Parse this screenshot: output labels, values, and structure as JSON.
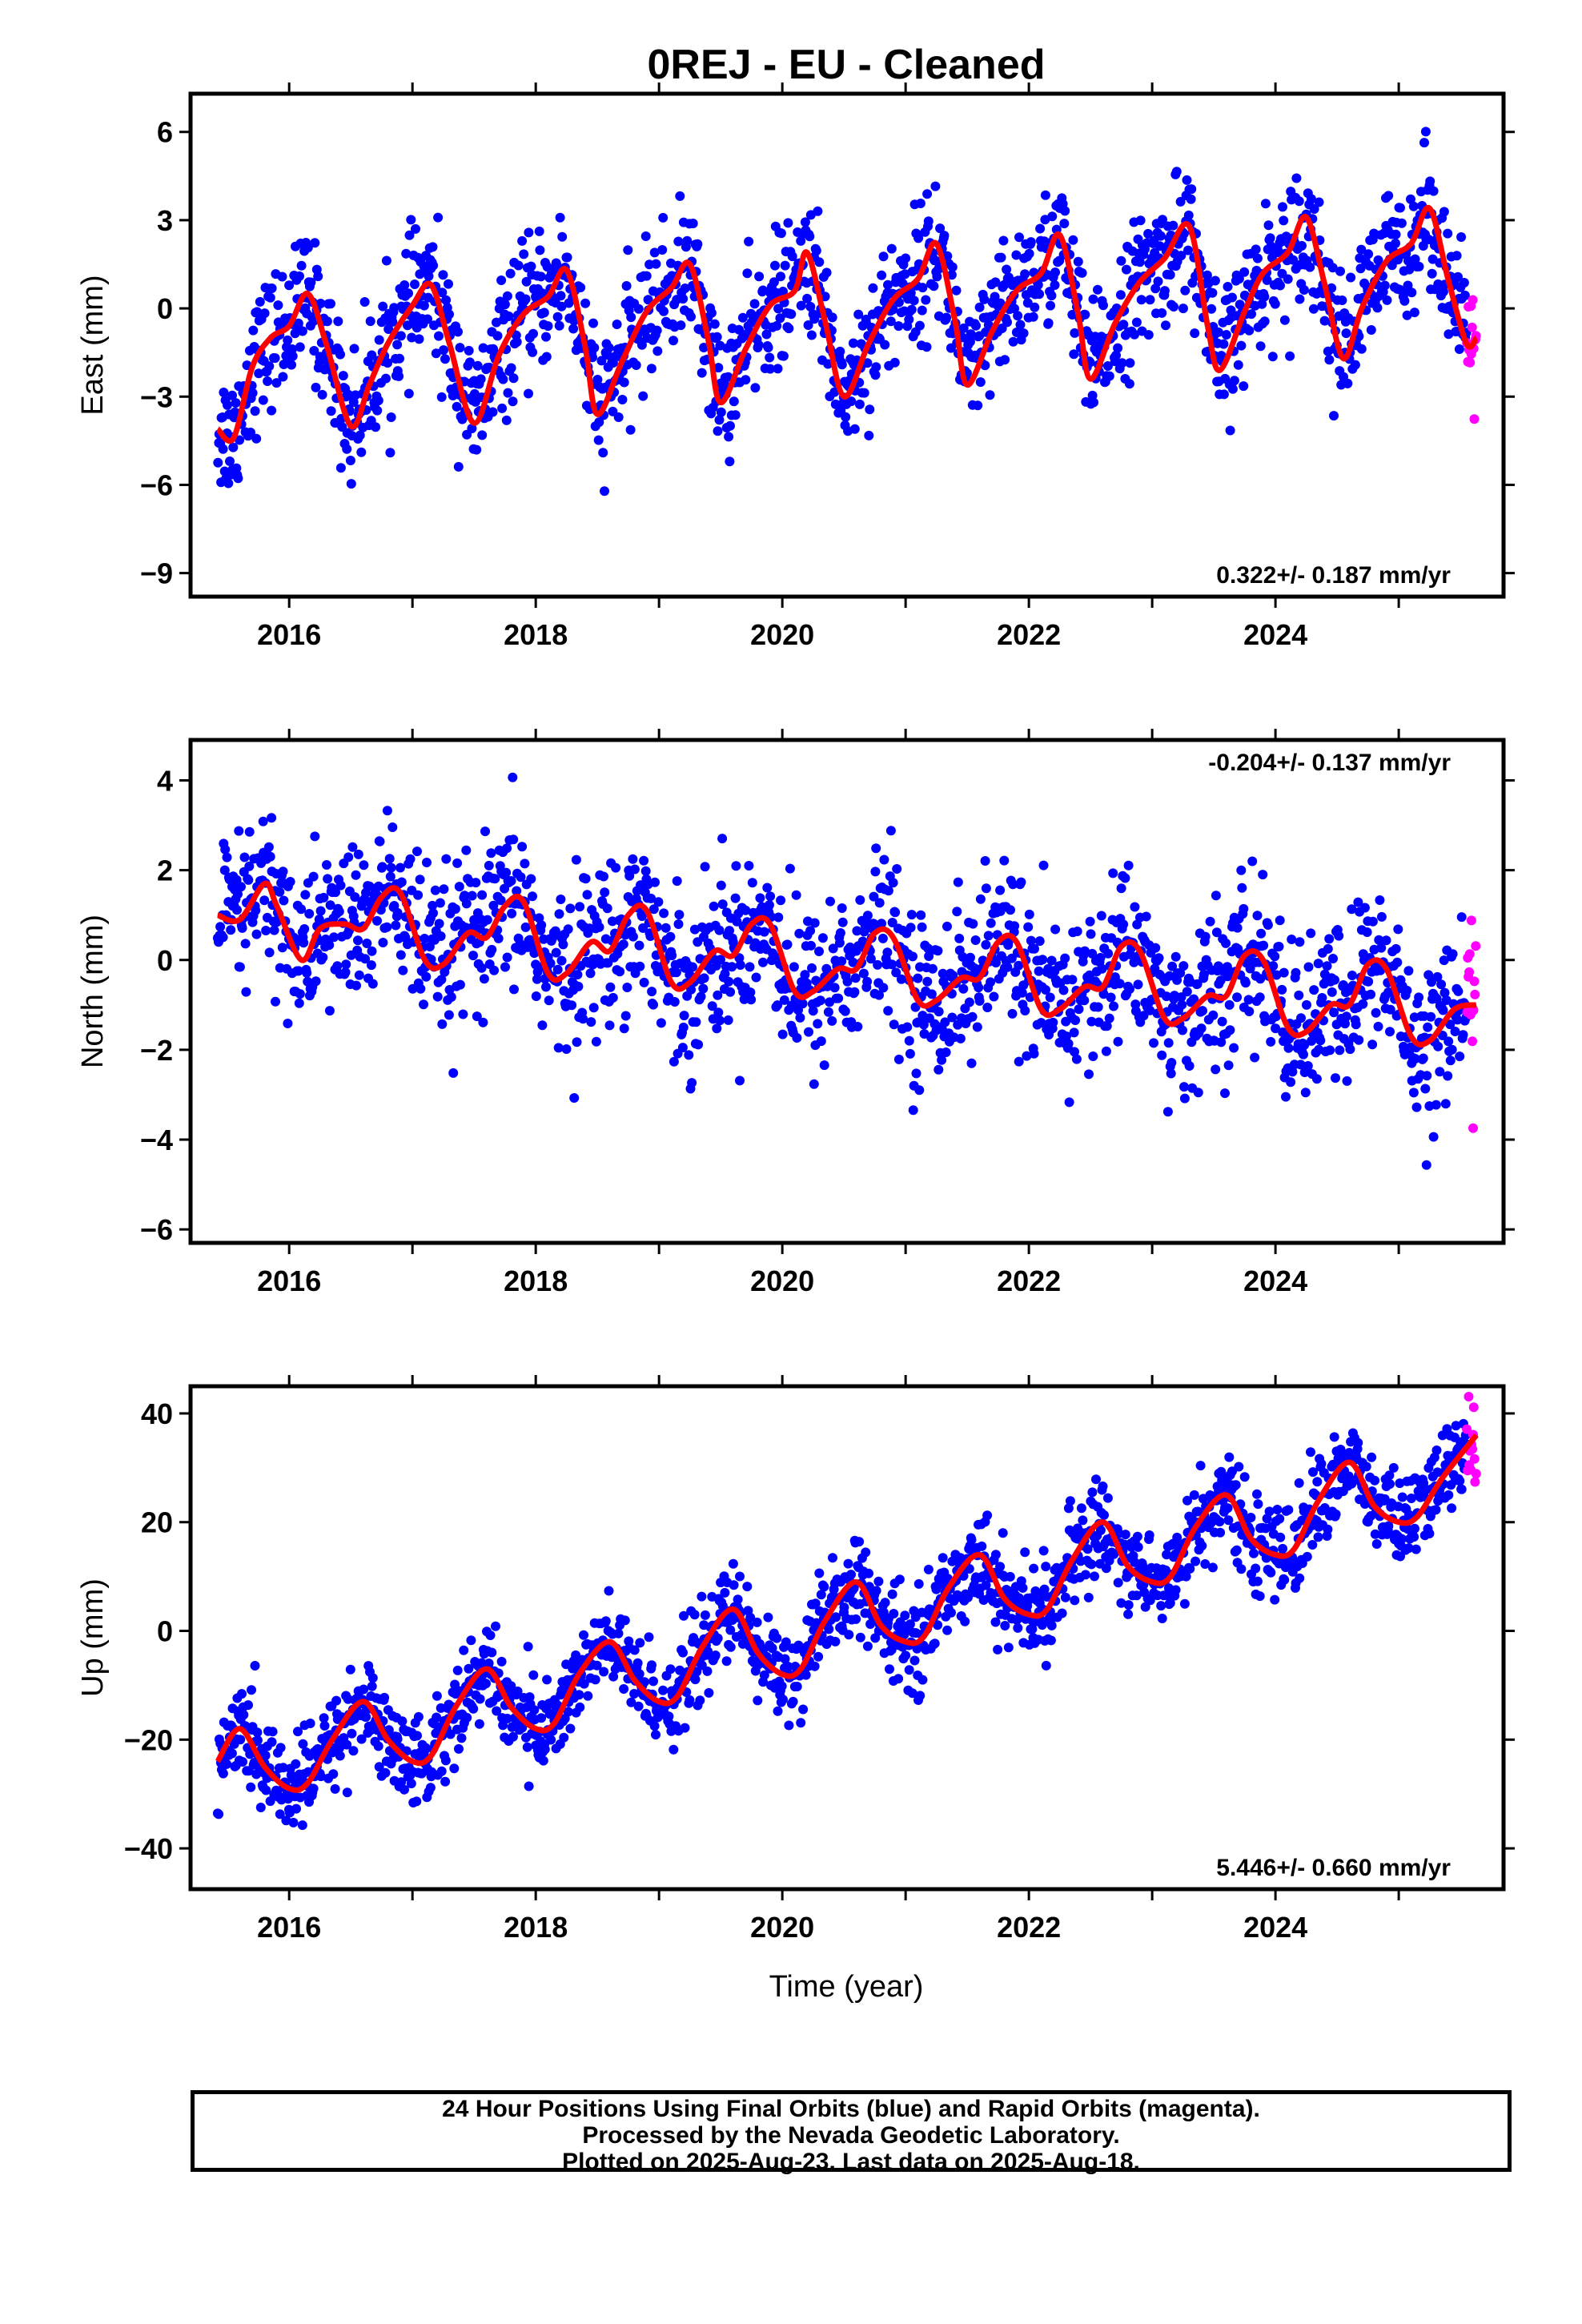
{
  "title": "0REJ  - EU - Cleaned",
  "xlabel": "Time (year)",
  "footer": {
    "line1": "24 Hour Positions Using Final Orbits (blue) and Rapid Orbits (magenta).",
    "line2": "Processed by the Nevada Geodetic Laboratory.",
    "line3": "Plotted on 2025-Aug-23. Last data on 2025-Aug-18."
  },
  "colors": {
    "final": "#0000ff",
    "rapid": "#ff00ff",
    "fit": "#ff0000"
  },
  "chart_data": [
    {
      "type": "scatter",
      "name": "east",
      "ylabel": "East (mm)",
      "rate_label": "0.322+/- 0.187 mm/yr",
      "xlim": [
        2015.2,
        2025.85
      ],
      "ylim": [
        -9.8,
        7.3
      ],
      "yticks": [
        -9,
        -6,
        -3,
        0,
        3,
        6
      ],
      "xticks": [
        2016,
        2018,
        2020,
        2022,
        2024
      ],
      "x_range": [
        2015.42,
        2025.63
      ],
      "rapid_start": 2025.55,
      "fit": {
        "x": [
          2015.42,
          2015.55,
          2015.7,
          2015.85,
          2016.0,
          2016.15,
          2016.3,
          2016.5,
          2016.65,
          2016.8,
          2017.0,
          2017.15,
          2017.3,
          2017.5,
          2017.7,
          2017.9,
          2018.1,
          2018.25,
          2018.4,
          2018.5,
          2018.7,
          2018.9,
          2019.1,
          2019.25,
          2019.4,
          2019.5,
          2019.7,
          2019.9,
          2020.1,
          2020.2,
          2020.35,
          2020.5,
          2020.7,
          2020.9,
          2021.1,
          2021.25,
          2021.4,
          2021.5,
          2021.7,
          2021.9,
          2022.1,
          2022.25,
          2022.4,
          2022.5,
          2022.7,
          2022.9,
          2023.1,
          2023.3,
          2023.45,
          2023.55,
          2023.75,
          2023.9,
          2024.1,
          2024.25,
          2024.4,
          2024.55,
          2024.7,
          2024.9,
          2025.1,
          2025.25,
          2025.4,
          2025.55,
          2025.63
        ],
        "y": [
          -4.1,
          -4.4,
          -2.0,
          -1.0,
          -0.6,
          0.5,
          -1.2,
          -4.0,
          -2.6,
          -1.2,
          0.1,
          0.8,
          -1.2,
          -3.9,
          -1.6,
          -0.2,
          0.4,
          1.3,
          -1.3,
          -3.6,
          -1.8,
          -0.1,
          0.7,
          1.5,
          -1.1,
          -3.2,
          -1.4,
          0.1,
          0.6,
          1.9,
          -0.5,
          -3.0,
          -1.2,
          0.3,
          1.0,
          2.2,
          -0.4,
          -2.6,
          -0.8,
          0.6,
          1.2,
          2.5,
          -0.2,
          -2.4,
          -0.5,
          0.9,
          1.7,
          2.8,
          -0.6,
          -2.1,
          -0.1,
          1.2,
          1.9,
          3.1,
          0.8,
          -1.7,
          0.0,
          1.6,
          2.2,
          3.4,
          1.0,
          -1.2,
          -1.0
        ]
      },
      "scatter_sigma": 1.1
    },
    {
      "type": "scatter",
      "name": "north",
      "ylabel": "North (mm)",
      "rate_label": "-0.204+/- 0.137 mm/yr",
      "xlim": [
        2015.2,
        2025.85
      ],
      "ylim": [
        -6.3,
        4.9
      ],
      "yticks": [
        -6,
        -4,
        -2,
        0,
        2,
        4
      ],
      "xticks": [
        2016,
        2018,
        2020,
        2022,
        2024
      ],
      "x_range": [
        2015.42,
        2025.63
      ],
      "rapid_start": 2025.55,
      "fit": {
        "x": [
          2015.42,
          2015.6,
          2015.8,
          2015.9,
          2016.1,
          2016.25,
          2016.45,
          2016.6,
          2016.75,
          2016.9,
          2017.1,
          2017.25,
          2017.45,
          2017.6,
          2017.75,
          2017.9,
          2018.1,
          2018.25,
          2018.45,
          2018.6,
          2018.75,
          2018.9,
          2019.1,
          2019.25,
          2019.45,
          2019.6,
          2019.75,
          2019.9,
          2020.1,
          2020.25,
          2020.45,
          2020.6,
          2020.75,
          2020.9,
          2021.1,
          2021.25,
          2021.45,
          2021.6,
          2021.75,
          2021.9,
          2022.1,
          2022.25,
          2022.45,
          2022.6,
          2022.75,
          2022.9,
          2023.1,
          2023.25,
          2023.45,
          2023.6,
          2023.75,
          2023.9,
          2024.1,
          2024.25,
          2024.45,
          2024.6,
          2024.75,
          2024.9,
          2025.1,
          2025.25,
          2025.45,
          2025.63
        ],
        "y": [
          1.0,
          0.9,
          1.7,
          1.2,
          0.0,
          0.7,
          0.8,
          0.7,
          1.4,
          1.5,
          0.0,
          -0.1,
          0.6,
          0.5,
          1.2,
          1.3,
          -0.3,
          -0.3,
          0.4,
          0.2,
          1.0,
          1.1,
          -0.5,
          -0.5,
          0.2,
          0.1,
          0.8,
          0.8,
          -0.7,
          -0.7,
          -0.2,
          -0.2,
          0.6,
          0.5,
          -0.9,
          -0.9,
          -0.4,
          -0.4,
          0.4,
          0.4,
          -1.1,
          -1.1,
          -0.6,
          -0.6,
          0.3,
          0.2,
          -1.3,
          -1.3,
          -0.8,
          -0.8,
          0.1,
          0.0,
          -1.5,
          -1.6,
          -1.0,
          -1.0,
          -0.1,
          -0.2,
          -1.7,
          -1.8,
          -1.1,
          -1.0
        ]
      },
      "scatter_sigma": 0.9
    },
    {
      "type": "scatter",
      "name": "up",
      "ylabel": "Up (mm)",
      "rate_label": "5.446+/- 0.660 mm/yr",
      "xlim": [
        2015.2,
        2025.85
      ],
      "ylim": [
        -47.5,
        45.0
      ],
      "yticks": [
        -40,
        -20,
        0,
        20,
        40
      ],
      "xticks": [
        2016,
        2018,
        2020,
        2022,
        2024
      ],
      "x_range": [
        2015.42,
        2025.63
      ],
      "rapid_start": 2025.55,
      "fit": {
        "x": [
          2015.42,
          2015.6,
          2015.8,
          2016.0,
          2016.15,
          2016.35,
          2016.6,
          2016.8,
          2017.0,
          2017.15,
          2017.35,
          2017.6,
          2017.8,
          2018.0,
          2018.15,
          2018.35,
          2018.6,
          2018.8,
          2019.0,
          2019.15,
          2019.35,
          2019.6,
          2019.8,
          2020.0,
          2020.15,
          2020.35,
          2020.6,
          2020.8,
          2021.0,
          2021.15,
          2021.35,
          2021.6,
          2021.8,
          2022.0,
          2022.15,
          2022.35,
          2022.6,
          2022.8,
          2023.0,
          2023.15,
          2023.35,
          2023.6,
          2023.8,
          2024.0,
          2024.15,
          2024.35,
          2024.6,
          2024.8,
          2025.0,
          2025.15,
          2025.35,
          2025.63
        ],
        "y": [
          -24,
          -18,
          -25,
          -29,
          -28,
          -20,
          -13,
          -20,
          -24,
          -23,
          -14,
          -7,
          -14,
          -18,
          -17,
          -8,
          -2,
          -9,
          -13,
          -12,
          -3,
          4,
          -4,
          -8,
          -7,
          2,
          9,
          1,
          -2,
          -1,
          8,
          14,
          6,
          3,
          4,
          13,
          20,
          12,
          9,
          10,
          19,
          25,
          17,
          14,
          15,
          24,
          31,
          23,
          20,
          21,
          28,
          36
        ]
      },
      "scatter_sigma": 4.2
    }
  ]
}
